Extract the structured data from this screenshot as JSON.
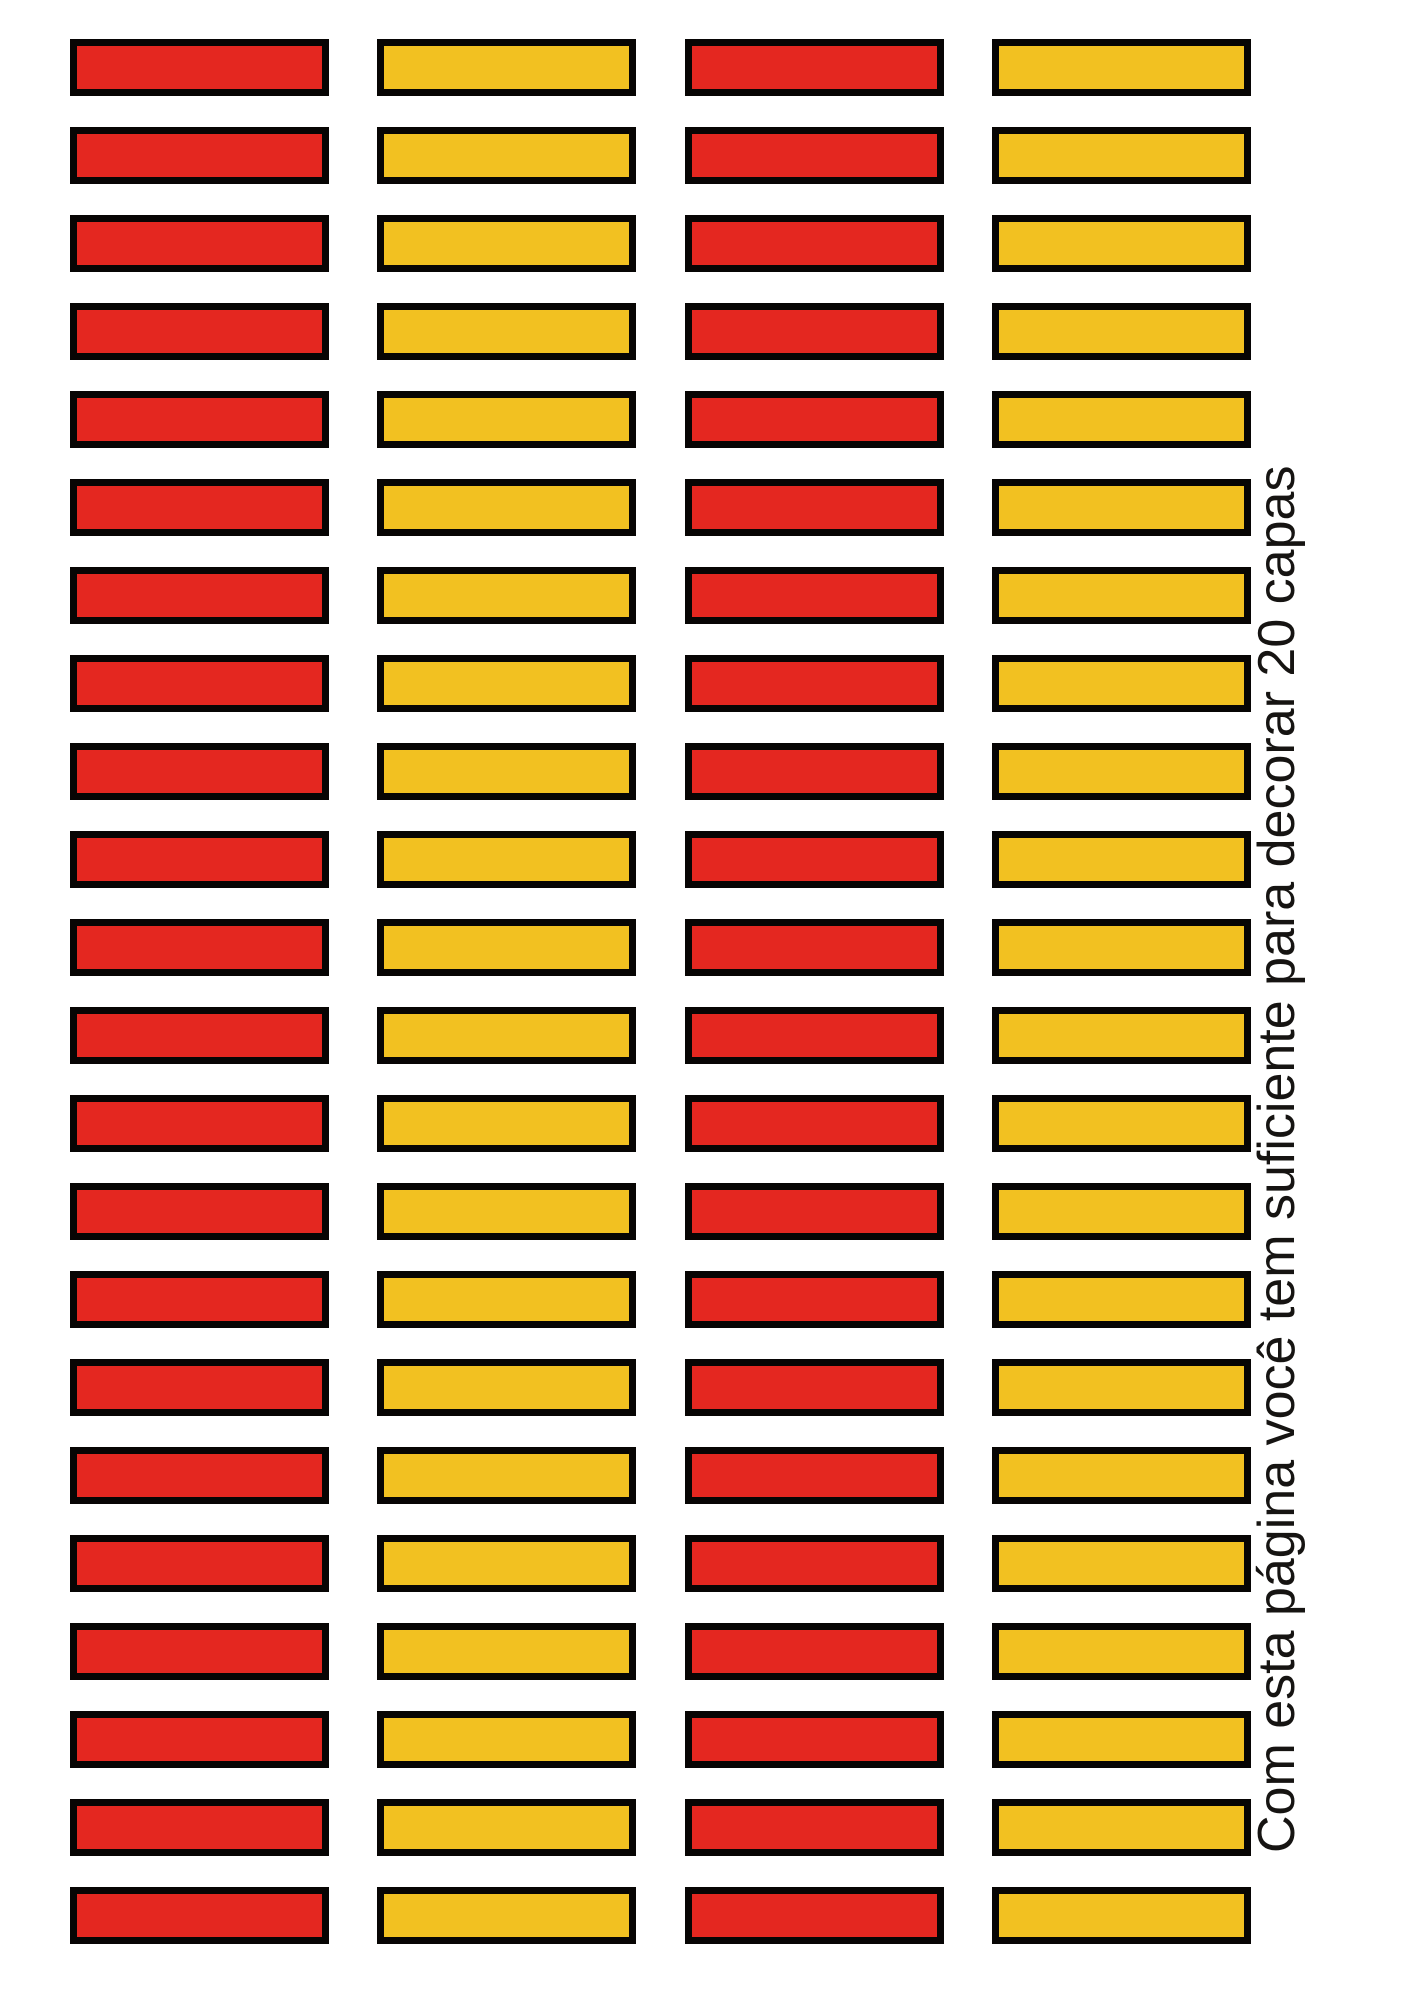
{
  "page": {
    "background": "#ffffff"
  },
  "note": {
    "text": "Com esta página você tem suficiente para decorar 20 capas",
    "color": "#161412"
  },
  "grid": {
    "rows_per_column": 22,
    "border_color": "#070504",
    "columns": [
      {
        "id": "column-1",
        "color_name": "red",
        "fill": "#e42720"
      },
      {
        "id": "column-2",
        "color_name": "yellow",
        "fill": "#f2c121"
      },
      {
        "id": "column-3",
        "color_name": "red",
        "fill": "#e42720"
      },
      {
        "id": "column-4",
        "color_name": "yellow",
        "fill": "#f2c121"
      }
    ]
  }
}
